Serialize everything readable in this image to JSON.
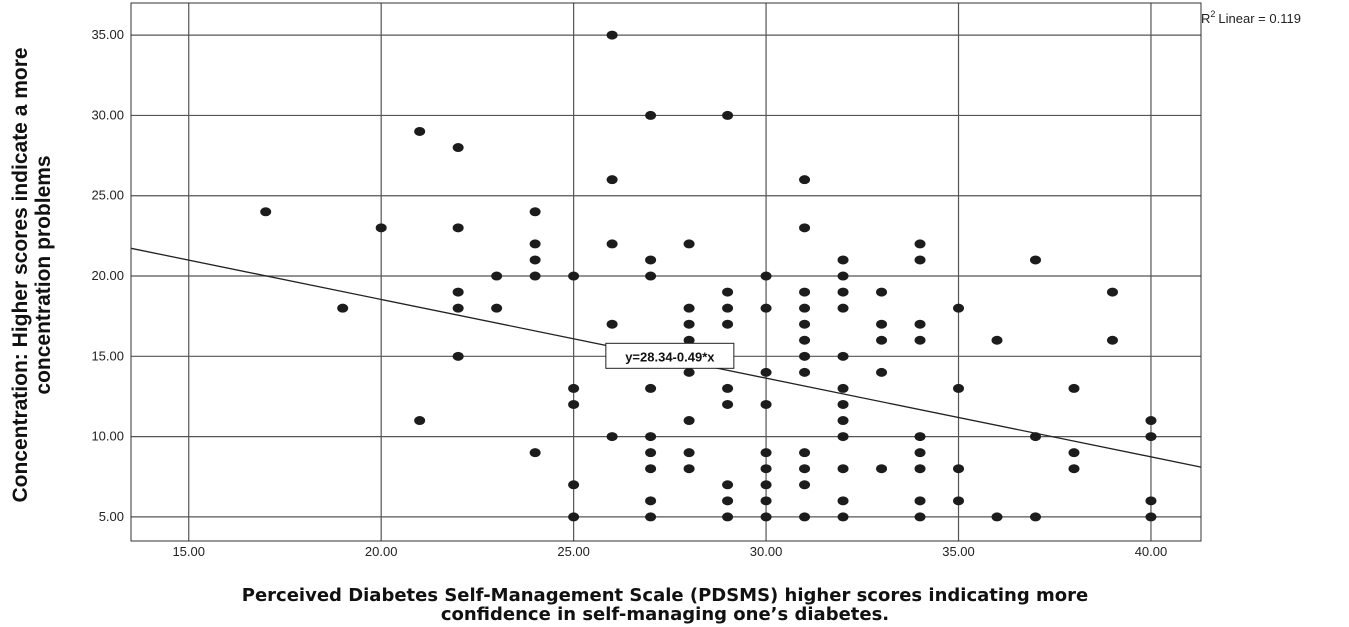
{
  "chart_data": {
    "type": "scatter",
    "title": "",
    "xlabel_lines": [
      "Perceived Diabetes Self-Management Scale (PDSMS) higher scores indicating more",
      "confidence in self-managing one’s diabetes."
    ],
    "ylabel_lines": [
      "Concentration: Higher scores indicate a more",
      "concentration problems"
    ],
    "xlim": [
      13.5,
      41.3
    ],
    "ylim": [
      3.5,
      37
    ],
    "x_ticks": [
      15,
      20,
      25,
      30,
      35,
      40
    ],
    "x_tick_labels": [
      "15.00",
      "20.00",
      "25.00",
      "30.00",
      "35.00",
      "40.00"
    ],
    "y_ticks": [
      5,
      10,
      15,
      20,
      25,
      30,
      35
    ],
    "y_tick_labels": [
      "5.00",
      "10.00",
      "15.00",
      "20.00",
      "25.00",
      "30.00",
      "35.00"
    ],
    "grid": true,
    "r2_label": "Linear = 0.119",
    "r2_prefix": "R",
    "r2_sup": "2",
    "fit_line": {
      "intercept": 28.34,
      "slope": -0.49,
      "label": "y=28.34-0.49*x",
      "label_at": [
        27.5,
        15
      ]
    },
    "points": [
      [
        17,
        24
      ],
      [
        19,
        18
      ],
      [
        20,
        23
      ],
      [
        21,
        29
      ],
      [
        21,
        11
      ],
      [
        22,
        28
      ],
      [
        22,
        23
      ],
      [
        22,
        19
      ],
      [
        22,
        18
      ],
      [
        22,
        15
      ],
      [
        23,
        20
      ],
      [
        23,
        18
      ],
      [
        24,
        24
      ],
      [
        24,
        22
      ],
      [
        24,
        21
      ],
      [
        24,
        20
      ],
      [
        24,
        9
      ],
      [
        25,
        20
      ],
      [
        25,
        13
      ],
      [
        25,
        12
      ],
      [
        25,
        7
      ],
      [
        25,
        5
      ],
      [
        26,
        35
      ],
      [
        26,
        26
      ],
      [
        26,
        22
      ],
      [
        26,
        17
      ],
      [
        26,
        10
      ],
      [
        27,
        30
      ],
      [
        27,
        21
      ],
      [
        27,
        20
      ],
      [
        27,
        13
      ],
      [
        27,
        10
      ],
      [
        27,
        9
      ],
      [
        27,
        8
      ],
      [
        27,
        6
      ],
      [
        27,
        5
      ],
      [
        28,
        22
      ],
      [
        28,
        18
      ],
      [
        28,
        17
      ],
      [
        28,
        16
      ],
      [
        28,
        15
      ],
      [
        28,
        14
      ],
      [
        28,
        11
      ],
      [
        28,
        9
      ],
      [
        28,
        8
      ],
      [
        29,
        30
      ],
      [
        29,
        19
      ],
      [
        29,
        18
      ],
      [
        29,
        17
      ],
      [
        29,
        13
      ],
      [
        29,
        12
      ],
      [
        29,
        7
      ],
      [
        29,
        6
      ],
      [
        29,
        5
      ],
      [
        30,
        20
      ],
      [
        30,
        18
      ],
      [
        30,
        14
      ],
      [
        30,
        12
      ],
      [
        30,
        9
      ],
      [
        30,
        8
      ],
      [
        30,
        7
      ],
      [
        30,
        6
      ],
      [
        30,
        5
      ],
      [
        31,
        26
      ],
      [
        31,
        23
      ],
      [
        31,
        19
      ],
      [
        31,
        18
      ],
      [
        31,
        17
      ],
      [
        31,
        16
      ],
      [
        31,
        15
      ],
      [
        31,
        14
      ],
      [
        31,
        9
      ],
      [
        31,
        8
      ],
      [
        31,
        7
      ],
      [
        31,
        5
      ],
      [
        32,
        21
      ],
      [
        32,
        20
      ],
      [
        32,
        19
      ],
      [
        32,
        18
      ],
      [
        32,
        15
      ],
      [
        32,
        13
      ],
      [
        32,
        12
      ],
      [
        32,
        11
      ],
      [
        32,
        10
      ],
      [
        32,
        8
      ],
      [
        32,
        6
      ],
      [
        32,
        5
      ],
      [
        33,
        19
      ],
      [
        33,
        17
      ],
      [
        33,
        16
      ],
      [
        33,
        14
      ],
      [
        33,
        8
      ],
      [
        34,
        22
      ],
      [
        34,
        21
      ],
      [
        34,
        17
      ],
      [
        34,
        16
      ],
      [
        34,
        10
      ],
      [
        34,
        9
      ],
      [
        34,
        8
      ],
      [
        34,
        6
      ],
      [
        34,
        5
      ],
      [
        35,
        18
      ],
      [
        35,
        13
      ],
      [
        35,
        8
      ],
      [
        35,
        6
      ],
      [
        36,
        16
      ],
      [
        36,
        5
      ],
      [
        37,
        21
      ],
      [
        37,
        10
      ],
      [
        37,
        5
      ],
      [
        38,
        13
      ],
      [
        38,
        9
      ],
      [
        38,
        8
      ],
      [
        39,
        19
      ],
      [
        39,
        16
      ],
      [
        40,
        11
      ],
      [
        40,
        10
      ],
      [
        40,
        6
      ],
      [
        40,
        5
      ]
    ]
  }
}
